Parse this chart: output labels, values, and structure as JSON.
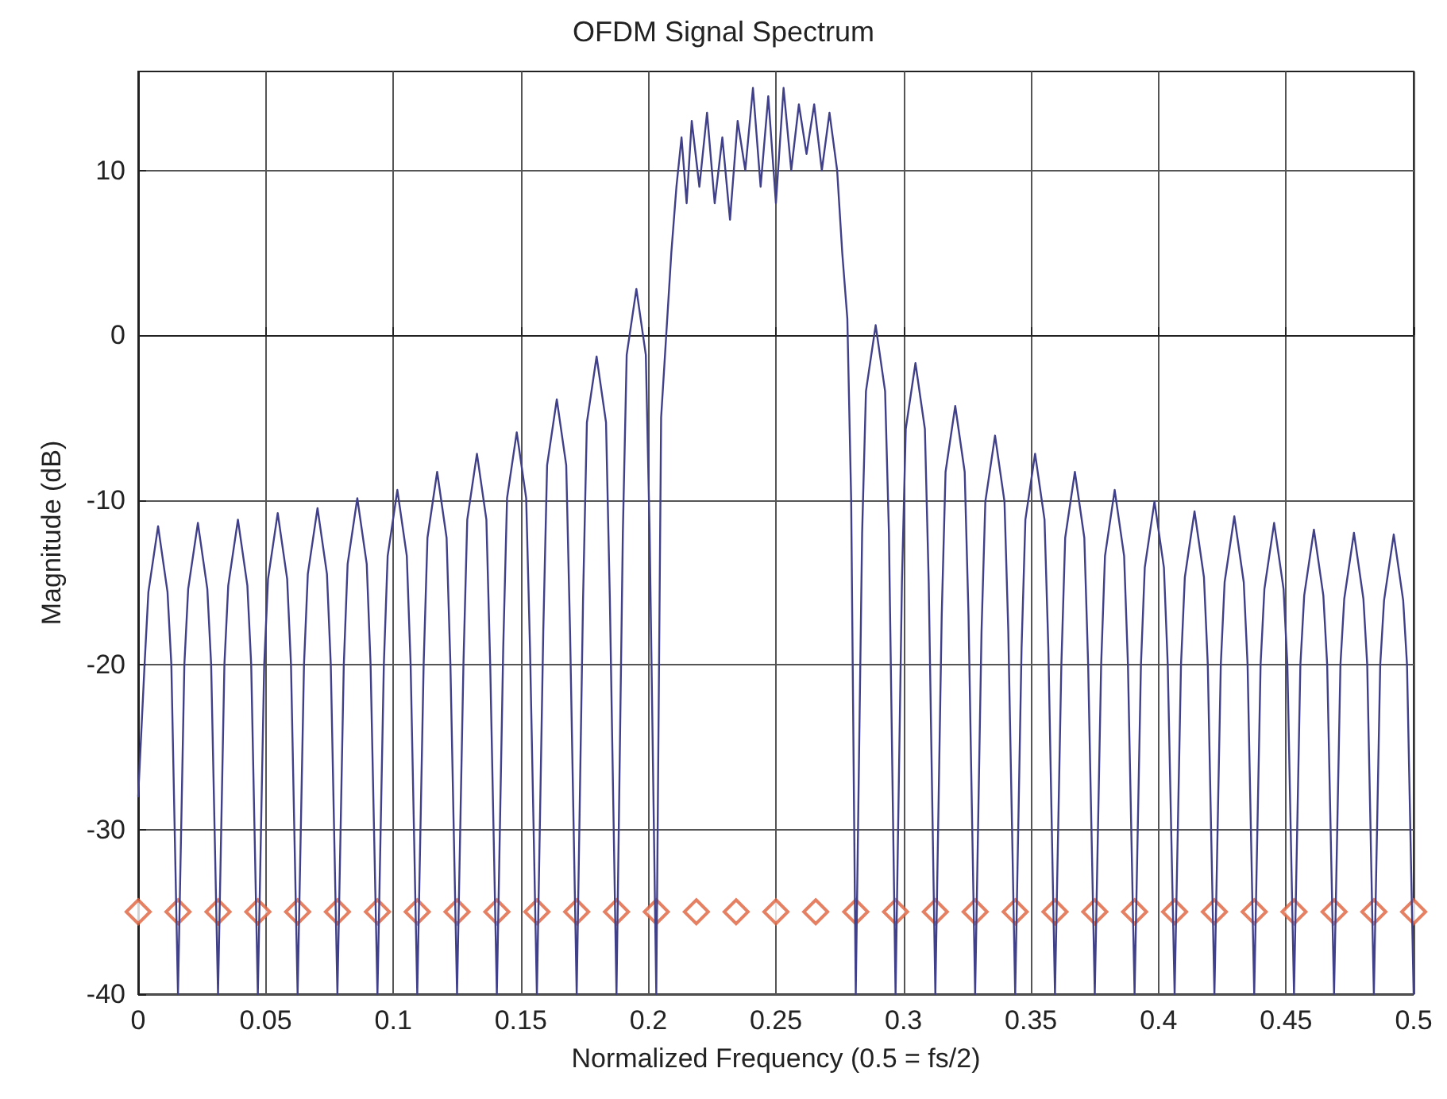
{
  "chart_data": {
    "type": "line",
    "title": "OFDM Signal Spectrum",
    "xlabel": "Normalized Frequency (0.5 = fs/2)",
    "ylabel": "Magnitude (dB)",
    "xlim": [
      0,
      0.5
    ],
    "xticks": [
      0,
      0.05,
      0.1,
      0.15,
      0.2,
      0.25,
      0.3,
      0.35,
      0.4,
      0.45,
      0.5
    ],
    "ylim": [
      -40,
      16
    ],
    "yticks": [
      -40,
      -30,
      -20,
      -10,
      0,
      10
    ],
    "grid": true,
    "series": [
      {
        "color": "#40408a",
        "marker": "none",
        "line_style": "solid",
        "x": [
          0,
          0.0025,
          0.004,
          0.0078,
          0.0115,
          0.013,
          0.0156,
          0.0181,
          0.0196,
          0.0234,
          0.0271,
          0.0286,
          0.0313,
          0.0338,
          0.0353,
          0.0391,
          0.0428,
          0.0443,
          0.0469,
          0.0494,
          0.0509,
          0.0547,
          0.0584,
          0.0599,
          0.0625,
          0.065,
          0.0665,
          0.0703,
          0.074,
          0.0755,
          0.0781,
          0.0806,
          0.0821,
          0.0859,
          0.0896,
          0.0911,
          0.0938,
          0.0963,
          0.0978,
          0.1016,
          0.1053,
          0.1068,
          0.1094,
          0.1119,
          0.1134,
          0.1172,
          0.1209,
          0.1224,
          0.125,
          0.1275,
          0.129,
          0.1328,
          0.1365,
          0.138,
          0.1406,
          0.1431,
          0.1446,
          0.1484,
          0.1521,
          0.1536,
          0.1563,
          0.1588,
          0.1603,
          0.1641,
          0.1678,
          0.1693,
          0.1719,
          0.1744,
          0.1759,
          0.1797,
          0.1834,
          0.1849,
          0.1875,
          0.19,
          0.1915,
          0.1953,
          0.199,
          0.2005,
          0.2031,
          0.205,
          0.207,
          0.209,
          0.211,
          0.213,
          0.215,
          0.217,
          0.22,
          0.223,
          0.226,
          0.229,
          0.232,
          0.235,
          0.238,
          0.241,
          0.244,
          0.247,
          0.25,
          0.253,
          0.256,
          0.259,
          0.262,
          0.265,
          0.268,
          0.271,
          0.274,
          0.276,
          0.278,
          0.2795,
          0.2813,
          0.2838,
          0.2853,
          0.2891,
          0.2928,
          0.2943,
          0.2969,
          0.2994,
          0.3009,
          0.3047,
          0.3084,
          0.3099,
          0.3125,
          0.315,
          0.3165,
          0.3203,
          0.324,
          0.3255,
          0.3281,
          0.3306,
          0.3321,
          0.3359,
          0.3396,
          0.3411,
          0.3438,
          0.3463,
          0.3478,
          0.3516,
          0.3553,
          0.3568,
          0.3594,
          0.3619,
          0.3634,
          0.3672,
          0.3709,
          0.3724,
          0.375,
          0.3775,
          0.379,
          0.3828,
          0.3865,
          0.388,
          0.3906,
          0.3931,
          0.3946,
          0.3984,
          0.4021,
          0.4036,
          0.4063,
          0.4088,
          0.4103,
          0.4141,
          0.4178,
          0.4193,
          0.4219,
          0.4244,
          0.4259,
          0.4297,
          0.4334,
          0.4349,
          0.4375,
          0.44,
          0.4415,
          0.4453,
          0.449,
          0.4505,
          0.4531,
          0.4556,
          0.4571,
          0.4609,
          0.4646,
          0.4661,
          0.4688,
          0.4713,
          0.4728,
          0.4766,
          0.4803,
          0.4818,
          0.4844,
          0.4869,
          0.4884,
          0.4922,
          0.4959,
          0.4974,
          0.5
        ],
        "values": [
          -28,
          -20,
          -15.6,
          -11.6,
          -15.6,
          -20,
          -40,
          -20,
          -15.4,
          -11.4,
          -15.4,
          -20,
          -40,
          -20,
          -15.2,
          -11.2,
          -15.2,
          -20,
          -40,
          -20,
          -14.8,
          -10.8,
          -14.8,
          -20,
          -40,
          -20,
          -14.5,
          -10.5,
          -14.5,
          -20,
          -40,
          -20,
          -13.9,
          -9.9,
          -13.9,
          -20,
          -40,
          -20,
          -13.4,
          -9.4,
          -13.4,
          -20,
          -40,
          -20,
          -12.3,
          -8.3,
          -12.3,
          -20,
          -40,
          -20,
          -11.2,
          -7.2,
          -11.2,
          -20,
          -40,
          -19,
          -9.9,
          -5.9,
          -9.9,
          -19,
          -40,
          -18,
          -7.9,
          -3.9,
          -7.9,
          -18,
          -40,
          -16,
          -5.3,
          -1.3,
          -5.3,
          -16,
          -40,
          -12,
          -1.2,
          2.8,
          -1.2,
          -12,
          -40,
          -5,
          0,
          5,
          9,
          12,
          8,
          13,
          9,
          13.5,
          8,
          12,
          7,
          13,
          10,
          15,
          9,
          14.5,
          8,
          15,
          10,
          14,
          11,
          14,
          10,
          13.5,
          10,
          5,
          1,
          -10,
          -40,
          -12,
          -3.4,
          0.6,
          -3.4,
          -12,
          -40,
          -15,
          -5.7,
          -1.7,
          -5.7,
          -15,
          -40,
          -17,
          -8.3,
          -4.3,
          -8.3,
          -17,
          -40,
          -18,
          -10.1,
          -6.1,
          -10.1,
          -18,
          -40,
          -19,
          -11.2,
          -7.2,
          -11.2,
          -19,
          -40,
          -20,
          -12.3,
          -8.3,
          -12.3,
          -20,
          -40,
          -20,
          -13.4,
          -9.4,
          -13.4,
          -20,
          -40,
          -20,
          -14.1,
          -10.1,
          -14.1,
          -20,
          -40,
          -20,
          -14.7,
          -10.7,
          -14.7,
          -20,
          -40,
          -20,
          -15,
          -11,
          -15,
          -20,
          -40,
          -20,
          -15.4,
          -11.4,
          -15.4,
          -20,
          -40,
          -20,
          -15.8,
          -11.8,
          -15.8,
          -20,
          -40,
          -20,
          -16,
          -12,
          -16,
          -20,
          -40,
          -20,
          -16.1,
          -12.1,
          -16.1,
          -20,
          -40
        ]
      },
      {
        "type": "scatter",
        "color": "#e0603c",
        "marker": "diamond",
        "x": [
          0,
          0.0156,
          0.0313,
          0.0469,
          0.0625,
          0.0781,
          0.0938,
          0.1094,
          0.125,
          0.1406,
          0.1563,
          0.1719,
          0.1875,
          0.2031,
          0.2188,
          0.2344,
          0.25,
          0.2656,
          0.2813,
          0.2969,
          0.3125,
          0.3281,
          0.3438,
          0.3594,
          0.375,
          0.3906,
          0.4063,
          0.4219,
          0.4375,
          0.4531,
          0.4688,
          0.4844,
          0.5
        ],
        "values": [
          -35,
          -35,
          -35,
          -35,
          -35,
          -35,
          -35,
          -35,
          -35,
          -35,
          -35,
          -35,
          -35,
          -35,
          -35,
          -35,
          -35,
          -35,
          -35,
          -35,
          -35,
          -35,
          -35,
          -35,
          -35,
          -35,
          -35,
          -35,
          -35,
          -35,
          -35,
          -35,
          -35
        ]
      }
    ]
  }
}
